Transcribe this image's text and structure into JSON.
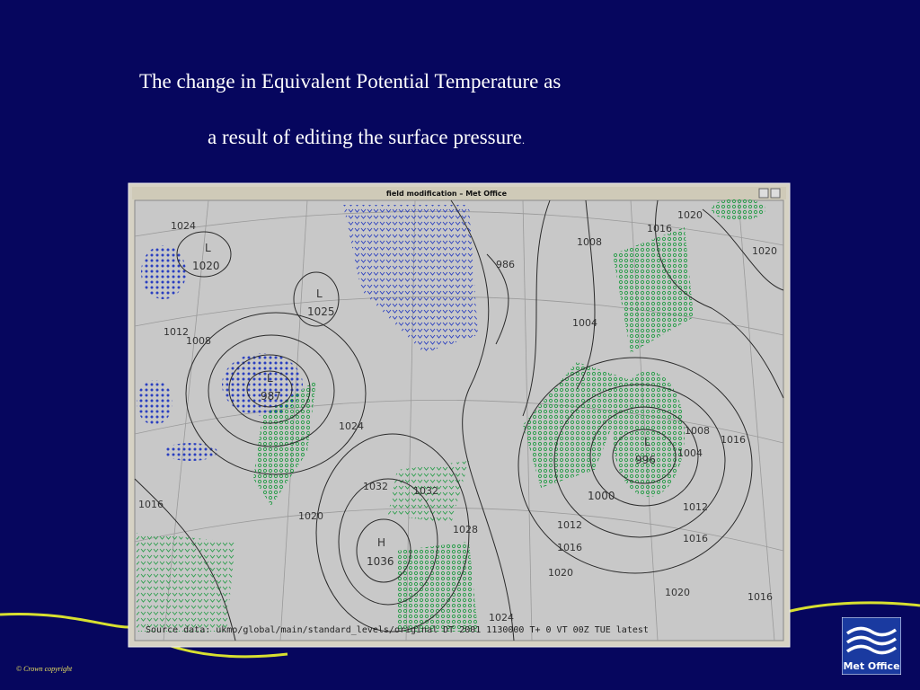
{
  "slide": {
    "title_line1": "The change in Equivalent Potential Temperature as",
    "title_line2": "a result of editing the surface pressure",
    "title_period": ".",
    "copyright": "© Crown copyright",
    "logo_text": "Met Office"
  },
  "window": {
    "title": "field modification – Met Office",
    "footer": "Source data: ukmo/global/main/standard_levels/original DT 2001 1130000  T+ 0 VT 00Z TUE  latest"
  },
  "map": {
    "labels": [
      "L",
      "1020",
      "L",
      "1025",
      "L",
      "987",
      "H",
      "1036",
      "L",
      "996",
      "1000",
      "1024",
      "1012",
      "1008",
      "1016",
      "1020",
      "1024",
      "1032",
      "1028",
      "1032",
      "1024",
      "1020",
      "1016",
      "1012",
      "1012",
      "1016",
      "1020",
      "1016",
      "1016",
      "1008",
      "1004",
      "1008",
      "1016",
      "1020",
      "1020",
      "986",
      "1004"
    ]
  }
}
